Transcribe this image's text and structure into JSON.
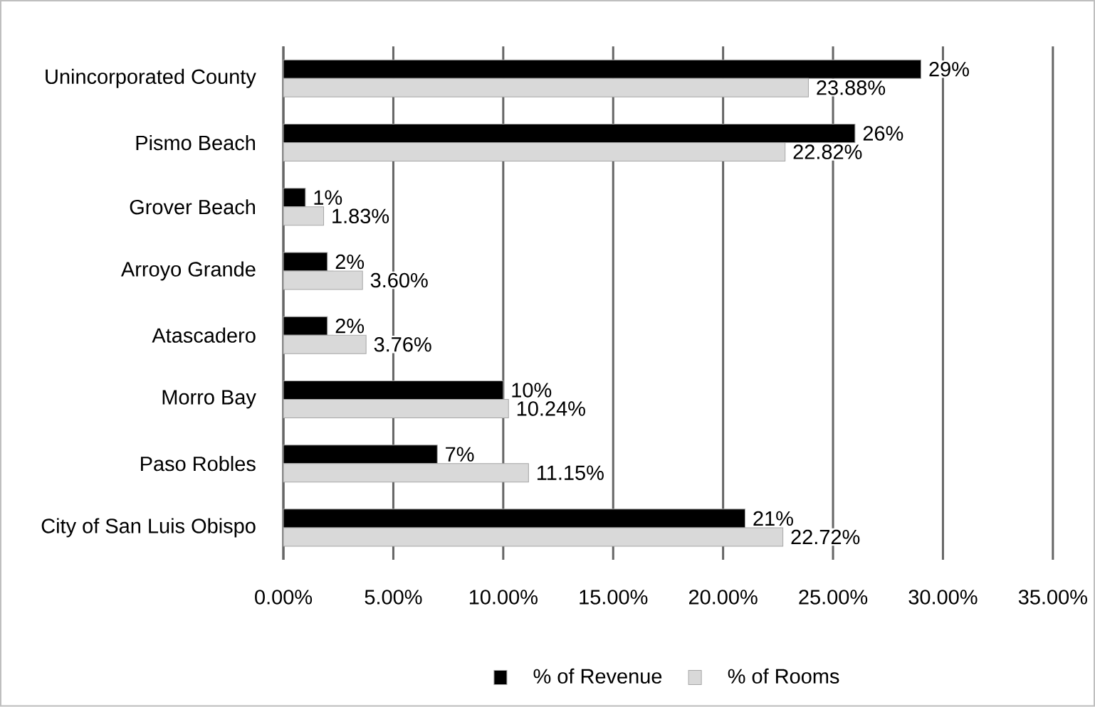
{
  "chart_data": {
    "type": "bar",
    "orientation": "horizontal",
    "categories": [
      "Unincorporated County",
      "Pismo Beach",
      "Grover Beach",
      "Arroyo Grande",
      "Atascadero",
      "Morro Bay",
      "Paso Robles",
      "City of San Luis Obispo"
    ],
    "series": [
      {
        "name": "% of Revenue",
        "color": "#000000",
        "values": [
          29,
          26,
          1,
          2,
          2,
          10,
          7,
          21
        ],
        "value_labels": [
          "29%",
          "26%",
          "1%",
          "2%",
          "2%",
          "10%",
          "7%",
          "21%"
        ]
      },
      {
        "name": "% of Rooms",
        "color": "#d9d9d9",
        "values": [
          23.88,
          22.82,
          1.83,
          3.6,
          3.76,
          10.24,
          11.15,
          22.72
        ],
        "value_labels": [
          "23.88%",
          "22.82%",
          "1.83%",
          "3.60%",
          "3.76%",
          "10.24%",
          "11.15%",
          "22.72%"
        ]
      }
    ],
    "xlim": [
      0,
      35
    ],
    "xticks": [
      {
        "value": 0,
        "label": "0.00%"
      },
      {
        "value": 5,
        "label": "5.00%"
      },
      {
        "value": 10,
        "label": "10.00%"
      },
      {
        "value": 15,
        "label": "15.00%"
      },
      {
        "value": 20,
        "label": "20.00%"
      },
      {
        "value": 25,
        "label": "25.00%"
      },
      {
        "value": 30,
        "label": "30.00%"
      },
      {
        "value": 35,
        "label": "35.00%"
      }
    ],
    "grid": "x",
    "legend": "bottom"
  }
}
